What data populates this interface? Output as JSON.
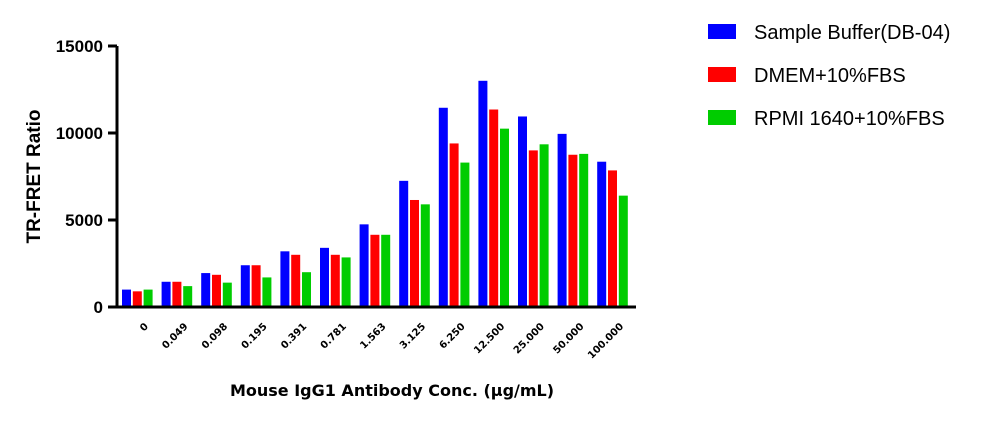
{
  "chart_data": {
    "type": "bar",
    "title": "",
    "xlabel": "Mouse IgG1 Antibody  Conc. (μg/mL)",
    "ylabel": "TR-FRET Ratio",
    "ylim": [
      0,
      15000
    ],
    "yticks": [
      0,
      5000,
      10000,
      15000
    ],
    "grid": false,
    "legend_position": "top-right",
    "categories": [
      "0",
      "0.049",
      "0.098",
      "0.195",
      "0.391",
      "0.781",
      "1.563",
      "3.125",
      "6.250",
      "12.500",
      "25.000",
      "50.000",
      "100.000"
    ],
    "series": [
      {
        "name": "Sample Buffer(DB-04)",
        "color": "#0000ff",
        "values": [
          1000,
          1450,
          1950,
          2400,
          3200,
          3400,
          4750,
          7250,
          11450,
          13000,
          10950,
          9950,
          8350
        ]
      },
      {
        "name": "DMEM+10%FBS",
        "color": "#ff0000",
        "values": [
          900,
          1450,
          1850,
          2400,
          3000,
          3000,
          4150,
          6150,
          9400,
          11350,
          9000,
          8750,
          7850
        ]
      },
      {
        "name": "RPMI 1640+10%FBS",
        "color": "#00cc00",
        "values": [
          1000,
          1200,
          1400,
          1700,
          2000,
          2850,
          4150,
          5900,
          8300,
          10250,
          9350,
          8800,
          6400
        ]
      }
    ]
  }
}
